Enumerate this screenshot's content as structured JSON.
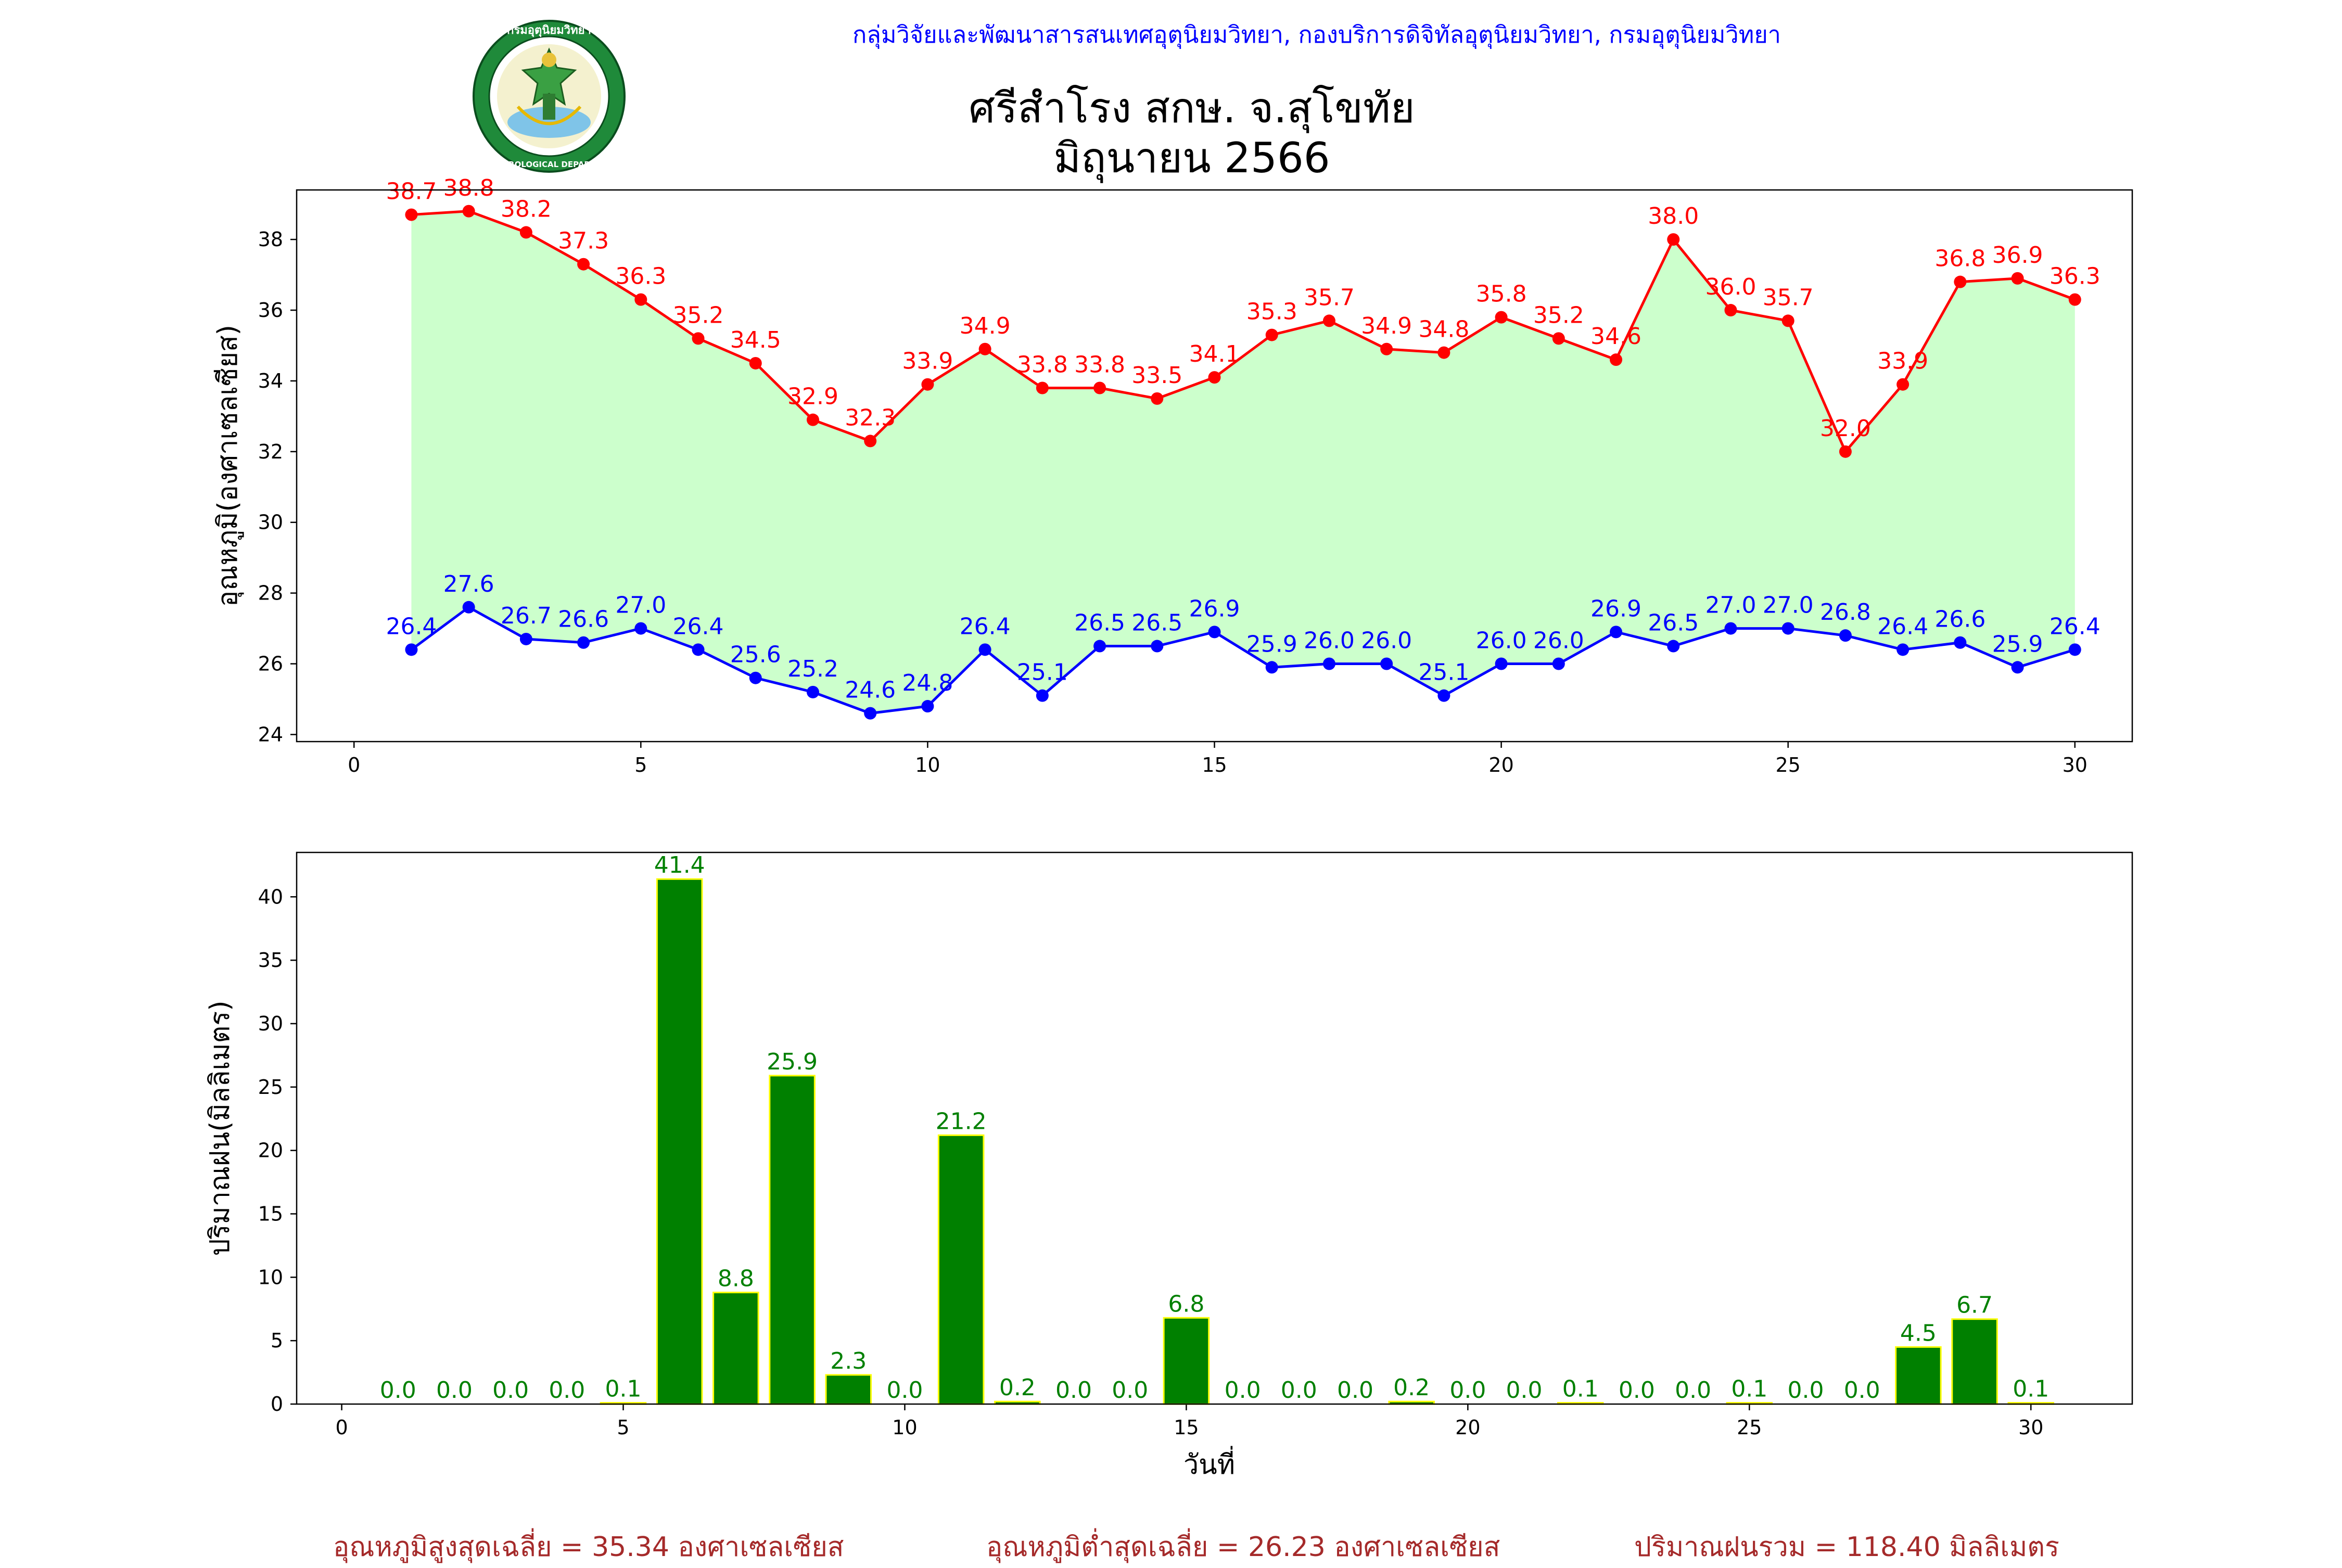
{
  "header": {
    "org_line": "กลุ่มวิจัยและพัฒนาสารสนเทศอุตุนิยมวิทยา, กองบริการดิจิทัลอุตุนิยมวิทยา, กรมอุตุนิยมวิทยา",
    "title_line1": "ศรีสำโรง สกษ. จ.สุโขทัย",
    "title_line2": "มิถุนายน 2566",
    "logo_top_text": "กรมอุตุนิยมวิทยา",
    "logo_bottom_text": "METEOROLOGICAL DEPARTMENT"
  },
  "colors": {
    "max_temp": "#ff0000",
    "min_temp": "#0000ff",
    "fill_between": "#ccffcc",
    "rain_bar": "#008000",
    "rain_bar_edge": "#ffff00",
    "rain_label": "#008000",
    "footer_text": "#a52a2a",
    "header_text": "#0000ff"
  },
  "chart_data": [
    {
      "type": "line",
      "ylabel": "อุณหภูมิ(องศาเซลเซียส)",
      "xlabel": "",
      "xlim": [
        -1,
        31
      ],
      "ylim": [
        23.8,
        39.4
      ],
      "xticks": [
        0,
        5,
        10,
        15,
        20,
        25,
        30
      ],
      "yticks": [
        24,
        26,
        28,
        30,
        32,
        34,
        36,
        38
      ],
      "x": [
        1,
        2,
        3,
        4,
        5,
        6,
        7,
        8,
        9,
        10,
        11,
        12,
        13,
        14,
        15,
        16,
        17,
        18,
        19,
        20,
        21,
        22,
        23,
        24,
        25,
        26,
        27,
        28,
        29,
        30
      ],
      "series": [
        {
          "name": "max",
          "values": [
            38.7,
            38.8,
            38.2,
            37.3,
            36.3,
            35.2,
            34.5,
            32.9,
            32.3,
            33.9,
            34.9,
            33.8,
            33.8,
            33.5,
            34.1,
            35.3,
            35.7,
            34.9,
            34.8,
            35.8,
            35.2,
            34.6,
            38.0,
            36.0,
            35.7,
            32.0,
            33.9,
            36.8,
            36.9,
            36.3
          ],
          "labels": [
            "38.7",
            "38.8",
            "38.2",
            "37.3",
            "36.3",
            "35.2",
            "34.5",
            "32.9",
            "32.3",
            "33.9",
            "34.9",
            "33.8",
            "33.8",
            "33.5",
            "34.1",
            "35.3",
            "35.7",
            "34.9",
            "34.8",
            "35.8",
            "35.2",
            "34.6",
            "38.0",
            "36.0",
            "35.7",
            "32.0",
            "33.9",
            "36.8",
            "36.9",
            "36.3"
          ]
        },
        {
          "name": "min",
          "values": [
            26.4,
            27.6,
            26.7,
            26.6,
            27.0,
            26.4,
            25.6,
            25.2,
            24.6,
            24.8,
            26.4,
            25.1,
            26.5,
            26.5,
            26.9,
            25.9,
            26.0,
            26.0,
            25.1,
            26.0,
            26.0,
            26.9,
            26.5,
            27.0,
            27.0,
            26.8,
            26.4,
            26.6,
            25.9,
            26.4
          ],
          "labels": [
            "26.4",
            "27.6",
            "26.7",
            "26.6",
            "27.0",
            "26.4",
            "25.6",
            "25.2",
            "24.6",
            "24.8",
            "26.4",
            "25.1",
            "26.5",
            "26.5",
            "26.9",
            "25.9",
            "26.0",
            "26.0",
            "25.1",
            "26.0",
            "26.0",
            "26.9",
            "26.5",
            "27.0",
            "27.0",
            "26.8",
            "26.4",
            "26.6",
            "25.9",
            "26.4"
          ]
        }
      ],
      "fill_between": true
    },
    {
      "type": "bar",
      "ylabel": "ปริมาณฝน(มิลลิเมตร)",
      "xlabel": "วันที่",
      "xlim": [
        -0.8,
        31.8
      ],
      "ylim": [
        0,
        43.5
      ],
      "xticks": [
        0,
        5,
        10,
        15,
        20,
        25,
        30
      ],
      "yticks": [
        0,
        5,
        10,
        15,
        20,
        25,
        30,
        35,
        40
      ],
      "x": [
        1,
        2,
        3,
        4,
        5,
        6,
        7,
        8,
        9,
        10,
        11,
        12,
        13,
        14,
        15,
        16,
        17,
        18,
        19,
        20,
        21,
        22,
        23,
        24,
        25,
        26,
        27,
        28,
        29,
        30
      ],
      "values": [
        0.0,
        0.0,
        0.0,
        0.0,
        0.1,
        41.4,
        8.8,
        25.9,
        2.3,
        0.0,
        21.2,
        0.2,
        0.0,
        0.0,
        6.8,
        0.0,
        0.0,
        0.0,
        0.2,
        0.0,
        0.0,
        0.1,
        0.0,
        0.0,
        0.1,
        0.0,
        0.0,
        4.5,
        6.7,
        0.1
      ],
      "labels": [
        "0.0",
        "0.0",
        "0.0",
        "0.0",
        "0.1",
        "41.4",
        "8.8",
        "25.9",
        "2.3",
        "0.0",
        "21.2",
        "0.2",
        "0.0",
        "0.0",
        "6.8",
        "0.0",
        "0.0",
        "0.0",
        "0.2",
        "0.0",
        "0.0",
        "0.1",
        "0.0",
        "0.0",
        "0.1",
        "0.0",
        "0.0",
        "4.5",
        "6.7",
        "0.1"
      ]
    }
  ],
  "footer": {
    "avg_max": "อุณหภูมิสูงสุดเฉลี่ย = 35.34 องศาเซลเซียส",
    "avg_min": "อุณหภูมิต่ำสุดเฉลี่ย = 26.23 องศาเซลเซียส",
    "total_rain": "ปริมาณฝนรวม = 118.40 มิลลิเมตร"
  }
}
